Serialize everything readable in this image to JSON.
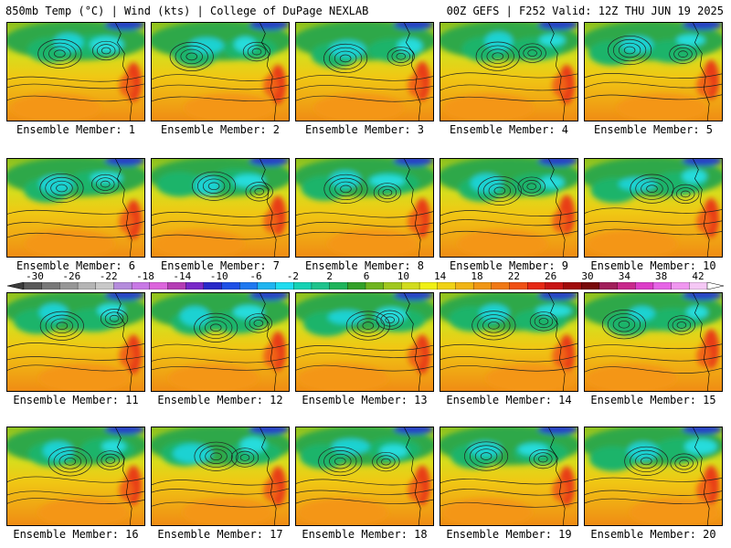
{
  "header": {
    "left": "850mb Temp (°C) | Wind (kts) | College of DuPage NEXLAB",
    "right": "00Z GEFS | F252 Valid: 12Z THU JUN 19 2025"
  },
  "panels": [
    {
      "caption": "Ensemble Member: 1",
      "seed": 11
    },
    {
      "caption": "Ensemble Member: 2",
      "seed": 23
    },
    {
      "caption": "Ensemble Member: 3",
      "seed": 37
    },
    {
      "caption": "Ensemble Member: 4",
      "seed": 41
    },
    {
      "caption": "Ensemble Member: 5",
      "seed": 53
    },
    {
      "caption": "Ensemble Member: 6",
      "seed": 67
    },
    {
      "caption": "Ensemble Member: 7",
      "seed": 71
    },
    {
      "caption": "Ensemble Member: 8",
      "seed": 83
    },
    {
      "caption": "Ensemble Member: 9",
      "seed": 97
    },
    {
      "caption": "Ensemble Member: 10",
      "seed": 101
    },
    {
      "caption": "Ensemble Member: 11",
      "seed": 113
    },
    {
      "caption": "Ensemble Member: 12",
      "seed": 127
    },
    {
      "caption": "Ensemble Member: 13",
      "seed": 131
    },
    {
      "caption": "Ensemble Member: 14",
      "seed": 149
    },
    {
      "caption": "Ensemble Member: 15",
      "seed": 151
    },
    {
      "caption": "Ensemble Member: 16",
      "seed": 163
    },
    {
      "caption": "Ensemble Member: 17",
      "seed": 173
    },
    {
      "caption": "Ensemble Member: 18",
      "seed": 181
    },
    {
      "caption": "Ensemble Member: 19",
      "seed": 191
    },
    {
      "caption": "Ensemble Member: 20",
      "seed": 199
    }
  ],
  "colorbar": {
    "labels": [
      "-30",
      "-26",
      "-22",
      "-18",
      "-14",
      "-10",
      "-6",
      "-2",
      "2",
      "6",
      "10",
      "14",
      "18",
      "22",
      "26",
      "30",
      "34",
      "38",
      "42"
    ],
    "colors": [
      "#5a5a5a",
      "#787878",
      "#969696",
      "#b4b4b4",
      "#c8c8c8",
      "#b48cdc",
      "#c878e6",
      "#dc64dc",
      "#b43cb4",
      "#7828c8",
      "#2828c8",
      "#1e50e6",
      "#1e78f0",
      "#1eb4f0",
      "#1edcf0",
      "#14d2b4",
      "#1ec38c",
      "#1eb45a",
      "#32a028",
      "#6eb41e",
      "#a0c81e",
      "#d2dc1e",
      "#f0f014",
      "#f0d214",
      "#f0b414",
      "#f09614",
      "#f07814",
      "#f05014",
      "#e62814",
      "#c81414",
      "#a00a0a",
      "#780a0a",
      "#a01e5a",
      "#c8288c",
      "#dc3cc8",
      "#e664e6",
      "#f096f0",
      "#f5c8f5"
    ]
  }
}
